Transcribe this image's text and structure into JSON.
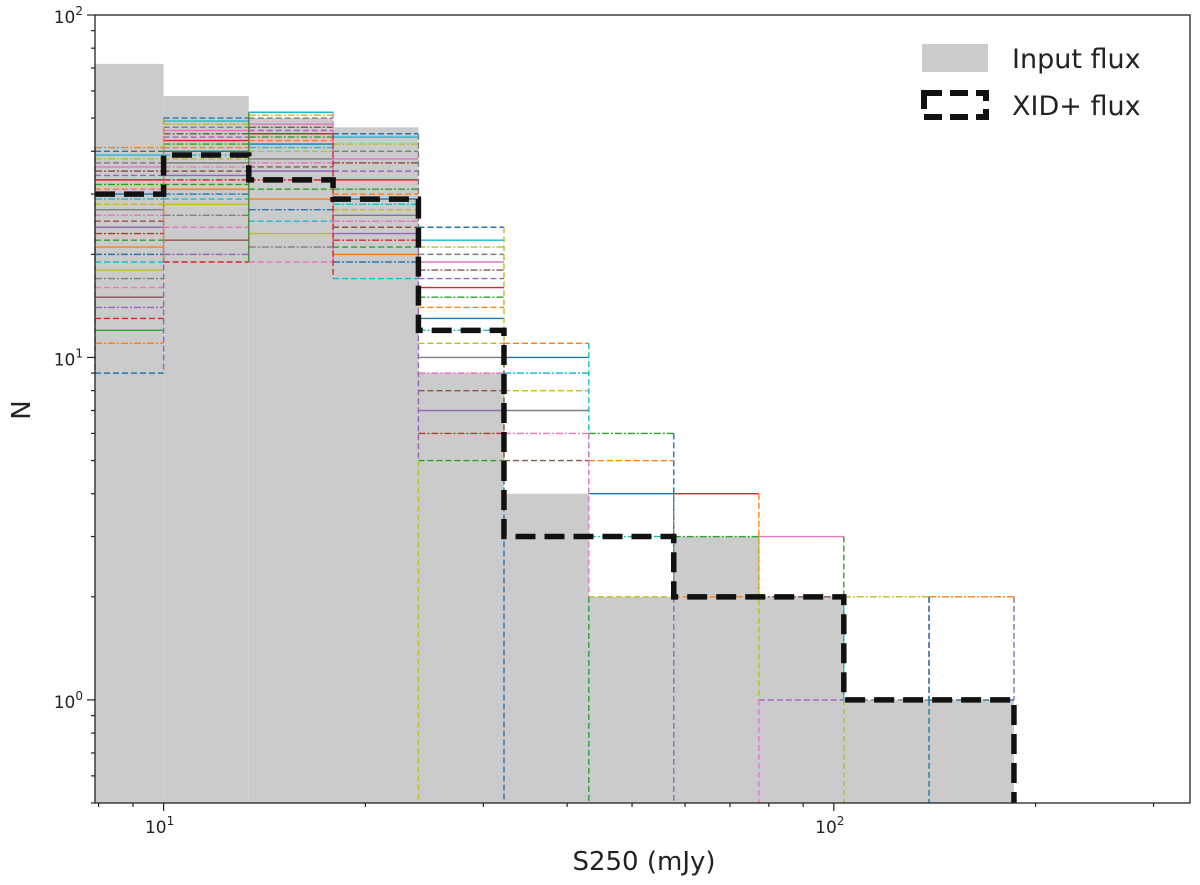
{
  "chart_data": {
    "type": "histogram",
    "title": "",
    "xlabel": "S250 (mJy)",
    "ylabel": "N",
    "xscale": "log",
    "yscale": "log",
    "xlim": [
      7.9,
      340
    ],
    "ylim": [
      0.5,
      100
    ],
    "xticks": [
      {
        "value": 10,
        "base": "10",
        "exp": "1"
      },
      {
        "value": 100,
        "base": "10",
        "exp": "2"
      }
    ],
    "yticks": [
      {
        "value": 1,
        "base": "10",
        "exp": "0"
      },
      {
        "value": 10,
        "base": "10",
        "exp": "1"
      },
      {
        "value": 100,
        "base": "10",
        "exp": "2"
      }
    ],
    "bin_edges": [
      7.9,
      10.0,
      13.4,
      17.9,
      24.0,
      32.2,
      43.1,
      57.7,
      77.3,
      103.5,
      138.7,
      185.7
    ],
    "series": [
      {
        "name": "Input flux",
        "style": "filled",
        "color": "#cbcbcb",
        "values": [
          72,
          58,
          50,
          47,
          9,
          4,
          2,
          3,
          2,
          1,
          1
        ]
      },
      {
        "name": "XID+ flux",
        "style": "dashed",
        "color": "#111111",
        "values": [
          30,
          39,
          33,
          29,
          12,
          3,
          3,
          2,
          2,
          1,
          1
        ]
      }
    ],
    "sample_band_values": [
      [
        9,
        11,
        12,
        13,
        14,
        15,
        16,
        17,
        18,
        19,
        20,
        21,
        22,
        23,
        24,
        25,
        26,
        27,
        28,
        29,
        30,
        31,
        32,
        33,
        34,
        35,
        36,
        37,
        38,
        39,
        40,
        41
      ],
      [
        19,
        20,
        22,
        24,
        26,
        28,
        29,
        30,
        31,
        32,
        33,
        34,
        35,
        36,
        37,
        38,
        39,
        40,
        41,
        42,
        43,
        44,
        45,
        46,
        47,
        48,
        49,
        50
      ],
      [
        19,
        21,
        23,
        25,
        27,
        29,
        31,
        33,
        35,
        36,
        37,
        38,
        40,
        41,
        42,
        43,
        44,
        45,
        46,
        47,
        48,
        50,
        51,
        52
      ],
      [
        17,
        19,
        20,
        21,
        22,
        23,
        24,
        25,
        26,
        27,
        28,
        29,
        30,
        31,
        33,
        35,
        37,
        38,
        40,
        42,
        44,
        45
      ],
      [
        5,
        6,
        7,
        8,
        9,
        10,
        11,
        12,
        13,
        14,
        15,
        16,
        17,
        18,
        19,
        20,
        21,
        22,
        24
      ],
      [
        5,
        6,
        7,
        8,
        9,
        10,
        11
      ],
      [
        2,
        3,
        4,
        5,
        6
      ],
      [
        2,
        3,
        4
      ],
      [
        1,
        2,
        3
      ],
      [
        1,
        2
      ],
      [
        1,
        2
      ]
    ],
    "sample_colors": [
      "#1f77b4",
      "#ff7f0e",
      "#2ca02c",
      "#d62728",
      "#9467bd",
      "#8c564b",
      "#e377c2",
      "#7f7f7f",
      "#bcbd22",
      "#17becf"
    ],
    "legend": {
      "position": "top-right",
      "entries": [
        "Input flux",
        "XID+ flux"
      ]
    }
  }
}
